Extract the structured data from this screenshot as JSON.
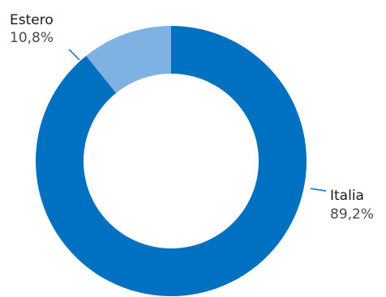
{
  "chart_data": {
    "type": "pie",
    "variant": "donut",
    "slices": [
      {
        "label": "Italia",
        "value": 89.2,
        "display": "89,2%",
        "color": "#0070c0"
      },
      {
        "label": "Estero",
        "value": 10.8,
        "display": "10,8%",
        "color": "#7fb2e2"
      }
    ],
    "start": "top",
    "direction": "clockwise",
    "legend": "none"
  }
}
